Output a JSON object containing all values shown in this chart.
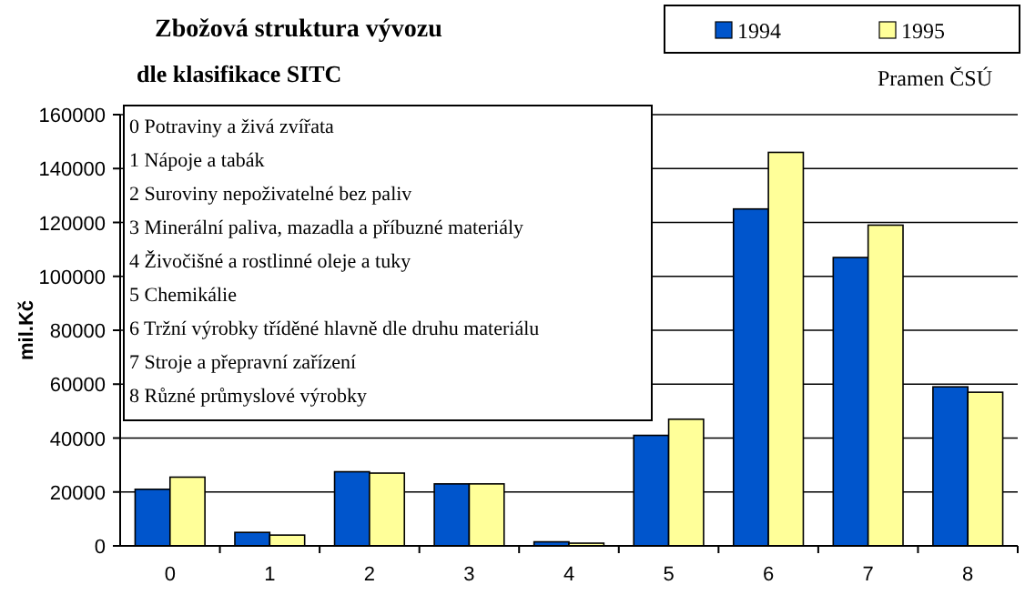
{
  "chart_data": {
    "type": "bar",
    "title": "Zbožová struktura vývozu",
    "subtitle": "dle klasifikace SITC",
    "ylabel": "mil.Kč",
    "categories": [
      "0",
      "1",
      "2",
      "3",
      "4",
      "5",
      "6",
      "7",
      "8"
    ],
    "series": [
      {
        "name": "1994",
        "color": "#0055cc",
        "values": [
          21000,
          5000,
          27500,
          23000,
          1500,
          41000,
          125000,
          107000,
          59000
        ]
      },
      {
        "name": "1995",
        "color": "#ffff99",
        "values": [
          25500,
          4000,
          27000,
          23000,
          1000,
          47000,
          146000,
          119000,
          57000
        ]
      }
    ],
    "ylim": [
      0,
      160000
    ],
    "yticks": [
      0,
      20000,
      40000,
      60000,
      80000,
      100000,
      120000,
      140000,
      160000
    ],
    "grid": "y",
    "legend": "top right",
    "annotations": [
      "Pramen ČSÚ",
      "0 Potraviny a živá zvířata",
      "1 Nápoje a tabák",
      "2 Suroviny nepoživatelné bez paliv",
      "3 Minerální paliva, mazadla a příbuzné materiály",
      "4 Živočišné a rostlinné oleje a tuky",
      "5 Chemikálie",
      "6 Tržní výrobky tříděné hlavně dle druhu materiálu",
      "7 Stroje a přepravní zařízení",
      "8 Různé průmyslové výrobky"
    ]
  }
}
